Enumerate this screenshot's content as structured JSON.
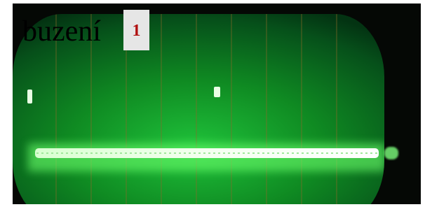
{
  "caption": "buzení",
  "badge": "1"
}
